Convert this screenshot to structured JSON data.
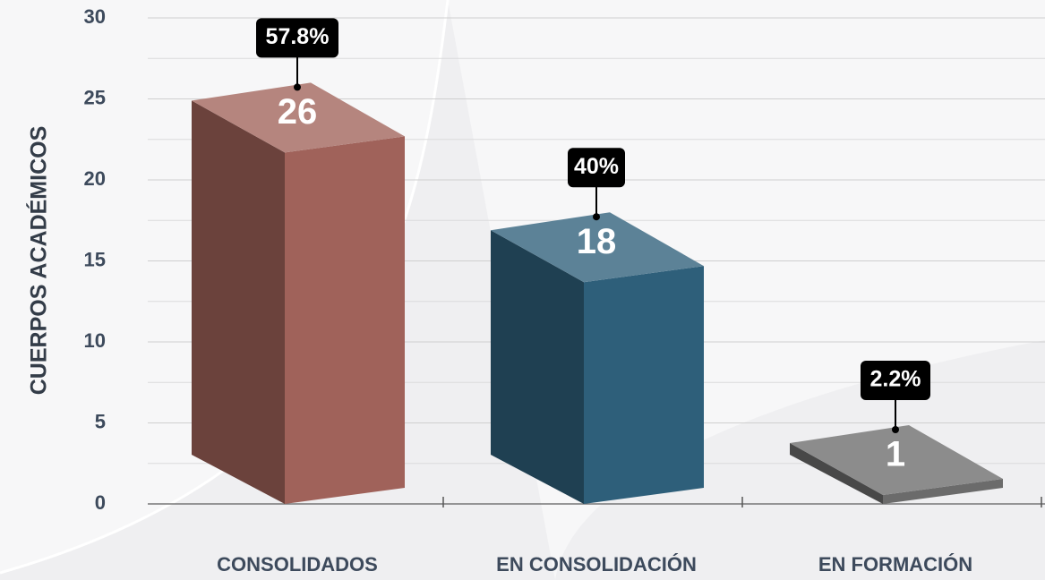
{
  "chart_data": {
    "type": "bar3d",
    "y_label": "CUERPOS ACADÉMICOS",
    "categories": [
      "CONSOLIDADOS",
      "EN CONSOLIDACIÓN",
      "EN FORMACIÓN"
    ],
    "values": [
      26,
      18,
      1
    ],
    "shares": [
      57.8,
      40,
      2.2
    ],
    "share_labels": [
      "57.8%",
      "40%",
      "2.2%"
    ],
    "colors": [
      "#a0625a",
      "#2e5f7a",
      "#6b6b6b"
    ],
    "ylim": [
      0,
      30
    ],
    "yticks": [
      0,
      5,
      10,
      15,
      20,
      25,
      30
    ],
    "minor_yticks": [
      2.5,
      7.5,
      12.5,
      17.5,
      22.5,
      27.5
    ],
    "grid": true
  }
}
